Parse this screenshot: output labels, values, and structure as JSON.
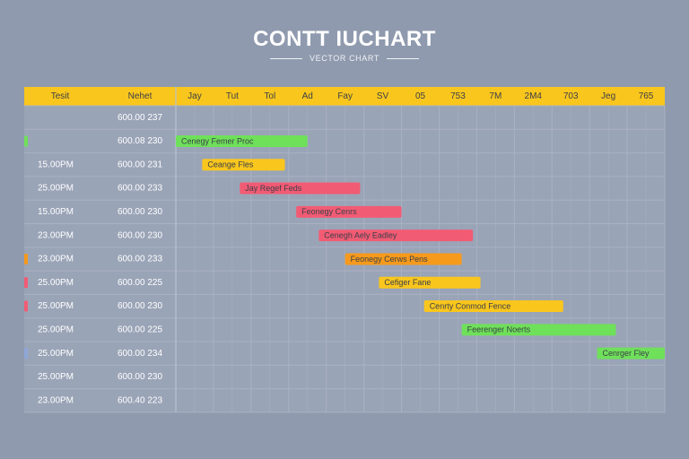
{
  "title": "CONTT IUCHART",
  "subtitle": "VECTOR CHART",
  "colors": {
    "header": "#f9c61d",
    "background": "#8f9aae",
    "grid": "#a9b2c2",
    "green": "#6fe05a",
    "yellow": "#f9c61d",
    "red": "#f25b74",
    "orange": "#f59a1c",
    "blue": "#8fa6d8"
  },
  "chart_data": {
    "type": "gantt",
    "columns": [
      "Tesit",
      "Nehet"
    ],
    "timeline": [
      "Jay",
      "Tut",
      "Tol",
      "Ad",
      "Fay",
      "SV",
      "05",
      "753",
      "7M",
      "2M4",
      "703",
      "Jeg",
      "765"
    ],
    "rows": [
      {
        "time": "",
        "code": "600.00 237",
        "marker": null
      },
      {
        "time": "",
        "code": "600.08 230",
        "marker": "green"
      },
      {
        "time": "15.00PM",
        "code": "600.00 231",
        "marker": null
      },
      {
        "time": "25.00PM",
        "code": "600.00 233",
        "marker": null
      },
      {
        "time": "15.00PM",
        "code": "600.00 230",
        "marker": null
      },
      {
        "time": "23.00PM",
        "code": "600.00 230",
        "marker": null
      },
      {
        "time": "23.00PM",
        "code": "600.00 233",
        "marker": "orange"
      },
      {
        "time": "25.00PM",
        "code": "600.00 225",
        "marker": "red"
      },
      {
        "time": "25.00PM",
        "code": "600.00 230",
        "marker": "red"
      },
      {
        "time": "25.00PM",
        "code": "600.00 225",
        "marker": null
      },
      {
        "time": "25.00PM",
        "code": "600.00 234",
        "marker": "blue"
      },
      {
        "time": "25.00PM",
        "code": "600.00 230",
        "marker": null
      },
      {
        "time": "23.00PM",
        "code": "600.40 223",
        "marker": null
      }
    ],
    "tasks": [
      {
        "row": 1,
        "start": 0,
        "end": 3.5,
        "label": "Cenegy Femer Proc",
        "color": "green"
      },
      {
        "row": 2,
        "start": 0.7,
        "end": 2.9,
        "label": "Ceange Fles",
        "color": "yellow"
      },
      {
        "row": 3,
        "start": 1.7,
        "end": 4.9,
        "label": "Jay Regef Feds",
        "color": "red"
      },
      {
        "row": 4,
        "start": 3.2,
        "end": 6.0,
        "label": "Feonegy Cenrs",
        "color": "red"
      },
      {
        "row": 5,
        "start": 3.8,
        "end": 7.9,
        "label": "Cenegh Aely Eadley",
        "color": "red"
      },
      {
        "row": 6,
        "start": 4.5,
        "end": 7.6,
        "label": "Feonegy Cerws Pens",
        "color": "orange"
      },
      {
        "row": 7,
        "start": 5.4,
        "end": 8.1,
        "label": "Cefiger Fane",
        "color": "yellow"
      },
      {
        "row": 8,
        "start": 6.6,
        "end": 10.3,
        "label": "Cenrty Conmod Fence",
        "color": "yellow"
      },
      {
        "row": 9,
        "start": 7.6,
        "end": 11.7,
        "label": "Feerenger Noerts",
        "color": "green"
      },
      {
        "row": 10,
        "start": 11.2,
        "end": 13.0,
        "label": "Cenrger Fley",
        "color": "green"
      }
    ]
  }
}
